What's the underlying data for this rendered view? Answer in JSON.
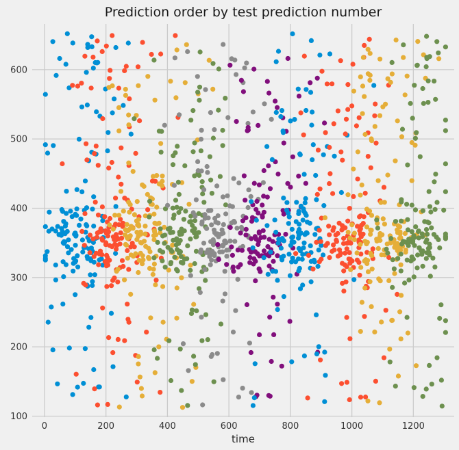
{
  "chart_data": {
    "type": "scatter",
    "title": "Prediction order by test prediction number",
    "xlabel": "time",
    "ylabel": "",
    "xlim": [
      -40,
      1333
    ],
    "ylim": [
      98.5,
      666
    ],
    "xticks": [
      0,
      200,
      400,
      600,
      800,
      1000,
      1200
    ],
    "yticks": [
      100,
      200,
      300,
      400,
      500,
      600
    ],
    "grid": true,
    "legend": false,
    "background_color": "#f0f0f0",
    "grid_color": "#cbcbcb",
    "text_color": "#262626",
    "marker_diameter_px": 7.2,
    "palette": {
      "blue": "#008fd5",
      "red": "#fc4f30",
      "yellow": "#e5ae38",
      "green": "#6d904f",
      "gray": "#8b8b8b",
      "purple": "#810f7c"
    },
    "description": "Ten sequential clusters ordered along the time axis, color cycle blue-red-yellow-green-gray-purple repeating; each cluster has a dense band near y=300-410 plus sparse scatter from y=110 to y=655",
    "groups": [
      {
        "color_name": "blue",
        "color": "#008fd5",
        "band": {
          "n": 88,
          "x_mean": 110,
          "x_std": 52,
          "y_mean": 352,
          "y_std": 27
        },
        "upper": {
          "n": 46,
          "x_mean": 125,
          "x_std": 80,
          "y_min": 390,
          "y_max": 652
        },
        "lower": {
          "n": 22,
          "x_mean": 120,
          "x_std": 75,
          "y_min": 112,
          "y_max": 310
        }
      },
      {
        "color_name": "red",
        "color": "#fc4f30",
        "band": {
          "n": 86,
          "x_mean": 220,
          "x_std": 50,
          "y_mean": 352,
          "y_std": 27
        },
        "upper": {
          "n": 44,
          "x_mean": 240,
          "x_std": 80,
          "y_min": 390,
          "y_max": 652
        },
        "lower": {
          "n": 20,
          "x_mean": 225,
          "x_std": 78,
          "y_min": 112,
          "y_max": 310
        }
      },
      {
        "color_name": "yellow",
        "color": "#e5ae38",
        "band": {
          "n": 84,
          "x_mean": 330,
          "x_std": 50,
          "y_mean": 352,
          "y_std": 27
        },
        "upper": {
          "n": 44,
          "x_mean": 345,
          "x_std": 78,
          "y_min": 390,
          "y_max": 652
        },
        "lower": {
          "n": 20,
          "x_mean": 340,
          "x_std": 75,
          "y_min": 112,
          "y_max": 310
        }
      },
      {
        "color_name": "green",
        "color": "#6d904f",
        "band": {
          "n": 82,
          "x_mean": 450,
          "x_std": 50,
          "y_mean": 352,
          "y_std": 27
        },
        "upper": {
          "n": 42,
          "x_mean": 465,
          "x_std": 76,
          "y_min": 390,
          "y_max": 652
        },
        "lower": {
          "n": 18,
          "x_mean": 455,
          "x_std": 72,
          "y_min": 112,
          "y_max": 310
        }
      },
      {
        "color_name": "gray",
        "color": "#8b8b8b",
        "band": {
          "n": 80,
          "x_mean": 570,
          "x_std": 50,
          "y_mean": 352,
          "y_std": 27
        },
        "upper": {
          "n": 40,
          "x_mean": 585,
          "x_std": 76,
          "y_min": 390,
          "y_max": 652
        },
        "lower": {
          "n": 18,
          "x_mean": 575,
          "x_std": 72,
          "y_min": 112,
          "y_max": 310
        }
      },
      {
        "color_name": "purple",
        "color": "#810f7c",
        "band": {
          "n": 78,
          "x_mean": 695,
          "x_std": 48,
          "y_mean": 352,
          "y_std": 27
        },
        "upper": {
          "n": 38,
          "x_mean": 710,
          "x_std": 78,
          "y_min": 390,
          "y_max": 652
        },
        "lower": {
          "n": 16,
          "x_mean": 700,
          "x_std": 75,
          "y_min": 112,
          "y_max": 310
        }
      },
      {
        "color_name": "blue",
        "color": "#008fd5",
        "band": {
          "n": 82,
          "x_mean": 815,
          "x_std": 52,
          "y_mean": 352,
          "y_std": 27
        },
        "upper": {
          "n": 40,
          "x_mean": 830,
          "x_std": 80,
          "y_min": 390,
          "y_max": 652
        },
        "lower": {
          "n": 18,
          "x_mean": 820,
          "x_std": 78,
          "y_min": 112,
          "y_max": 310
        }
      },
      {
        "color_name": "red",
        "color": "#fc4f30",
        "band": {
          "n": 86,
          "x_mean": 975,
          "x_std": 60,
          "y_mean": 352,
          "y_std": 27
        },
        "upper": {
          "n": 42,
          "x_mean": 985,
          "x_std": 80,
          "y_min": 390,
          "y_max": 652
        },
        "lower": {
          "n": 18,
          "x_mean": 975,
          "x_std": 78,
          "y_min": 112,
          "y_max": 310
        }
      },
      {
        "color_name": "yellow",
        "color": "#e5ae38",
        "band": {
          "n": 84,
          "x_mean": 1105,
          "x_std": 58,
          "y_mean": 352,
          "y_std": 27
        },
        "upper": {
          "n": 46,
          "x_mean": 1110,
          "x_std": 80,
          "y_min": 390,
          "y_max": 652
        },
        "lower": {
          "n": 18,
          "x_mean": 1105,
          "x_std": 78,
          "y_min": 112,
          "y_max": 310
        }
      },
      {
        "color_name": "green",
        "color": "#6d904f",
        "band": {
          "n": 80,
          "x_mean": 1215,
          "x_std": 50,
          "y_mean": 352,
          "y_std": 27
        },
        "upper": {
          "n": 42,
          "x_mean": 1220,
          "x_std": 70,
          "y_min": 390,
          "y_max": 652
        },
        "lower": {
          "n": 16,
          "x_mean": 1215,
          "x_std": 70,
          "y_min": 112,
          "y_max": 310
        }
      }
    ]
  }
}
